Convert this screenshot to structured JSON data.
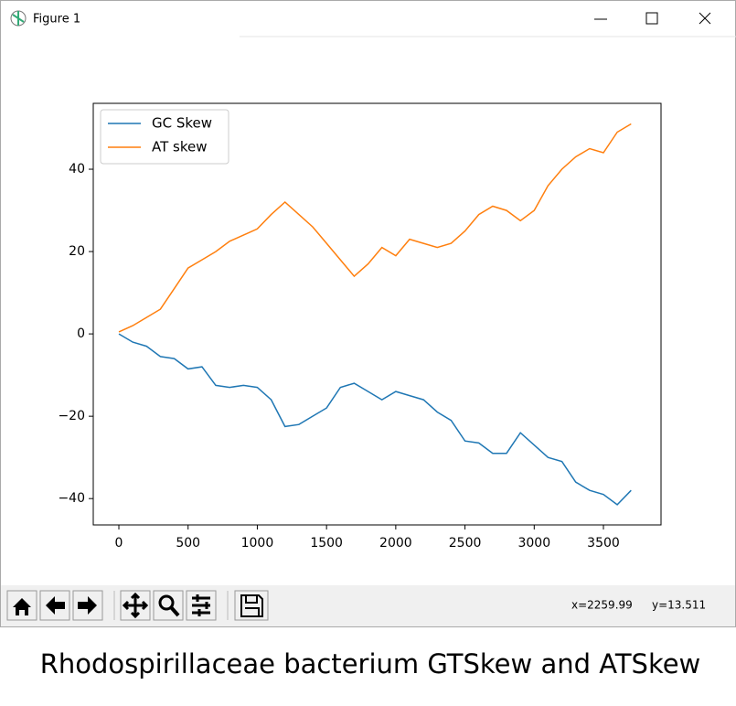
{
  "window": {
    "title": "Figure 1"
  },
  "status": {
    "x": "x=2259.99",
    "y": "y=13.511"
  },
  "caption": "Rhodospirillaceae bacterium GTSkew and ATSkew",
  "chart_data": {
    "type": "line",
    "x": [
      0,
      100,
      200,
      300,
      400,
      500,
      600,
      700,
      800,
      900,
      1000,
      1100,
      1200,
      1300,
      1400,
      1500,
      1600,
      1700,
      1800,
      1900,
      2000,
      2100,
      2200,
      2300,
      2400,
      2500,
      2600,
      2700,
      2800,
      2900,
      3000,
      3100,
      3200,
      3300,
      3400,
      3500,
      3600,
      3700
    ],
    "series": [
      {
        "name": "GC Skew",
        "color": "#1f77b4",
        "values": [
          0,
          -2,
          -3,
          -5.5,
          -6,
          -8.5,
          -8,
          -12.5,
          -13,
          -12.5,
          -13,
          -16,
          -22.5,
          -22,
          -20,
          -18,
          -13,
          -12,
          -14,
          -16,
          -14,
          -15,
          -16,
          -19,
          -21,
          -26,
          -26.5,
          -29,
          -29,
          -24,
          -27,
          -30,
          -31,
          -36,
          -38,
          -39,
          -41.5,
          -38
        ]
      },
      {
        "name": "AT skew",
        "color": "#ff7f0e",
        "values": [
          0.5,
          2,
          4,
          6,
          11,
          16,
          18,
          20,
          22.5,
          24,
          25.5,
          29,
          32,
          29,
          26,
          22,
          18,
          14,
          17,
          21,
          19,
          23,
          22,
          21,
          22,
          25,
          29,
          31,
          30,
          27.5,
          30,
          36,
          40,
          43,
          45,
          44,
          49,
          51
        ]
      }
    ],
    "xlim": [
      -185,
      3916
    ],
    "ylim": [
      -46.4,
      56
    ],
    "xticks": [
      0,
      500,
      1000,
      1500,
      2000,
      2500,
      3000,
      3500
    ],
    "yticks": [
      {
        "value": -40,
        "label": "−40"
      },
      {
        "value": -20,
        "label": "−20"
      },
      0,
      20,
      40
    ],
    "legend": "upper left"
  }
}
